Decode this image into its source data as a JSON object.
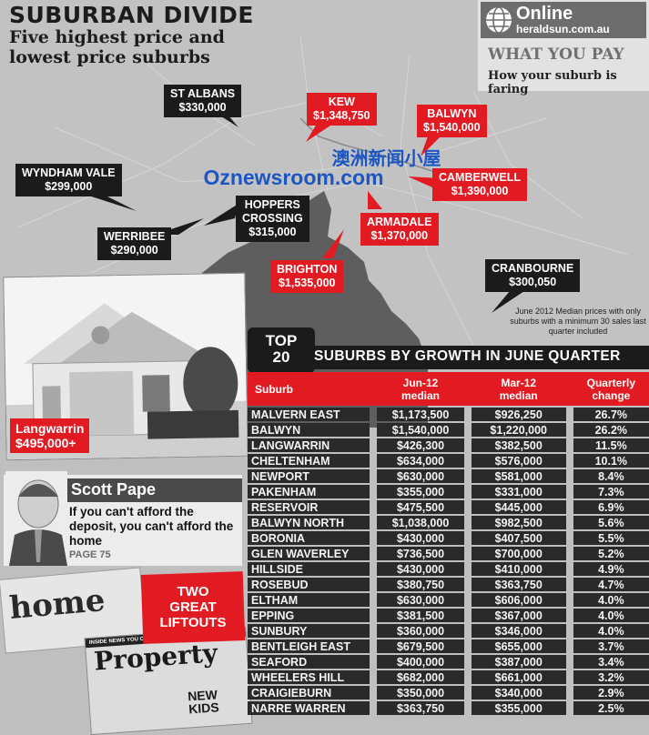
{
  "header": {
    "headline": "SUBURBAN DIVIDE",
    "subhead_line1": "Five highest price and",
    "subhead_line2": "lowest price suburbs"
  },
  "online_box": {
    "label": "Online",
    "url": "heraldsun.com.au",
    "section": "WHAT YOU PAY",
    "tagline": "How your suburb is faring"
  },
  "map_tags": [
    {
      "name": "ST ALBANS",
      "price": "$330,000",
      "style": "dark"
    },
    {
      "name": "KEW",
      "price": "$1,348,750",
      "style": "red"
    },
    {
      "name": "BALWYN",
      "price": "$1,540,000",
      "style": "red"
    },
    {
      "name": "WYNDHAM VALE",
      "price": "$299,000",
      "style": "dark"
    },
    {
      "name": "CAMBERWELL",
      "price": "$1,390,000",
      "style": "red"
    },
    {
      "name": "HOPPERS",
      "name2": "CROSSING",
      "price": "$315,000",
      "style": "dark"
    },
    {
      "name": "WERRIBEE",
      "price": "$290,000",
      "style": "dark"
    },
    {
      "name": "ARMADALE",
      "price": "$1,370,000",
      "style": "red"
    },
    {
      "name": "BRIGHTON",
      "price": "$1,535,000",
      "style": "red"
    },
    {
      "name": "CRANBOURNE",
      "price": "$300,050",
      "style": "dark"
    }
  ],
  "watermark": {
    "chinese": "澳洲新闻小屋",
    "site": "Oznewsroom.com"
  },
  "footnote": "June 2012 Median prices with only suburbs with a minimum 30 sales last quarter included",
  "photo": {
    "suburb": "Langwarrin",
    "price": "$495,000+"
  },
  "columnist": {
    "name": "Scott Pape",
    "quote": "If you can't afford the deposit, you can't afford the home",
    "page": "PAGE 75"
  },
  "liftouts": {
    "line1": "TWO",
    "line2": "GREAT",
    "line3": "LIFTOUTS",
    "home": "home",
    "property": "Property",
    "property_banner": "INSIDE NEWS YOU CAN USE FOR TODAY'S AUCTIONS",
    "new_kids": "NEW",
    "new_kids2": "KIDS"
  },
  "growth_table": {
    "badge_top": "TOP",
    "badge_num": "20",
    "title": "SUBURBS BY GROWTH IN JUNE QUARTER",
    "headers": {
      "suburb": "Suburb",
      "jun_1": "Jun-12",
      "jun_2": "median",
      "mar_1": "Mar-12",
      "mar_2": "median",
      "chg_1": "Quarterly",
      "chg_2": "change"
    },
    "rows": [
      {
        "suburb": "MALVERN EAST",
        "jun": "$1,173,500",
        "mar": "$926,250",
        "change": "26.7%"
      },
      {
        "suburb": "BALWYN",
        "jun": "$1,540,000",
        "mar": "$1,220,000",
        "change": "26.2%"
      },
      {
        "suburb": "LANGWARRIN",
        "jun": "$426,300",
        "mar": "$382,500",
        "change": "11.5%"
      },
      {
        "suburb": "CHELTENHAM",
        "jun": "$634,000",
        "mar": "$576,000",
        "change": "10.1%"
      },
      {
        "suburb": "NEWPORT",
        "jun": "$630,000",
        "mar": "$581,000",
        "change": "8.4%"
      },
      {
        "suburb": "PAKENHAM",
        "jun": "$355,000",
        "mar": "$331,000",
        "change": "7.3%"
      },
      {
        "suburb": "RESERVOIR",
        "jun": "$475,500",
        "mar": "$445,000",
        "change": "6.9%"
      },
      {
        "suburb": "BALWYN NORTH",
        "jun": "$1,038,000",
        "mar": "$982,500",
        "change": "5.6%"
      },
      {
        "suburb": "BORONIA",
        "jun": "$430,000",
        "mar": "$407,500",
        "change": "5.5%"
      },
      {
        "suburb": "GLEN WAVERLEY",
        "jun": "$736,500",
        "mar": "$700,000",
        "change": "5.2%"
      },
      {
        "suburb": "HILLSIDE",
        "jun": "$430,000",
        "mar": "$410,000",
        "change": "4.9%"
      },
      {
        "suburb": "ROSEBUD",
        "jun": "$380,750",
        "mar": "$363,750",
        "change": "4.7%"
      },
      {
        "suburb": "ELTHAM",
        "jun": "$630,000",
        "mar": "$606,000",
        "change": "4.0%"
      },
      {
        "suburb": "EPPING",
        "jun": "$381,500",
        "mar": "$367,000",
        "change": "4.0%"
      },
      {
        "suburb": "SUNBURY",
        "jun": "$360,000",
        "mar": "$346,000",
        "change": "4.0%"
      },
      {
        "suburb": "BENTLEIGH EAST",
        "jun": "$679,500",
        "mar": "$655,000",
        "change": "3.7%"
      },
      {
        "suburb": "SEAFORD",
        "jun": "$400,000",
        "mar": "$387,000",
        "change": "3.4%"
      },
      {
        "suburb": "WHEELERS HILL",
        "jun": "$682,000",
        "mar": "$661,000",
        "change": "3.2%"
      },
      {
        "suburb": "CRAIGIEBURN",
        "jun": "$350,000",
        "mar": "$340,000",
        "change": "2.9%"
      },
      {
        "suburb": "NARRE WARREN",
        "jun": "$363,750",
        "mar": "$355,000",
        "change": "2.5%"
      }
    ]
  }
}
